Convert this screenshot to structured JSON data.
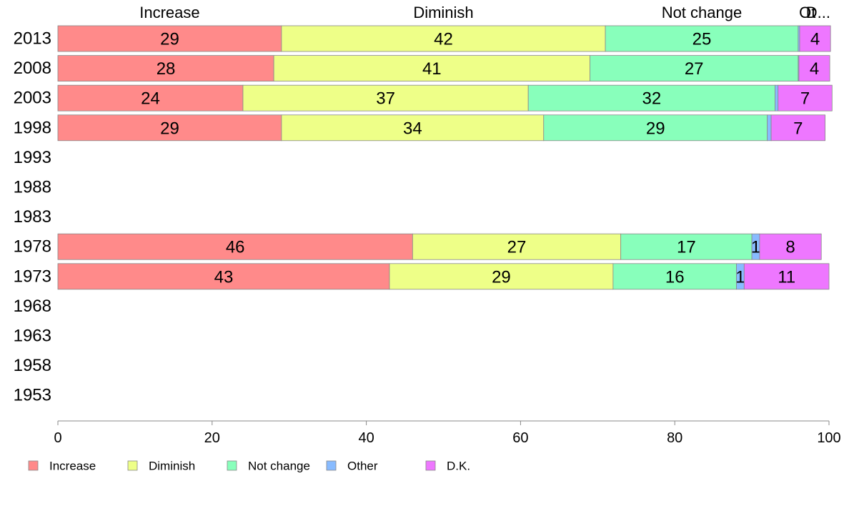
{
  "chart_data": {
    "type": "bar",
    "orientation": "horizontal",
    "stacked": true,
    "title": "",
    "xlabel": "",
    "ylabel": "",
    "xlim": [
      0,
      100
    ],
    "x_ticks": [
      0,
      20,
      40,
      60,
      80,
      100
    ],
    "categories": [
      "2013",
      "2008",
      "2003",
      "1998",
      "1993",
      "1988",
      "1983",
      "1978",
      "1973",
      "1968",
      "1963",
      "1958",
      "1953"
    ],
    "series": [
      {
        "name": "Increase",
        "color": "#ff8a8a",
        "values": [
          29,
          28,
          24,
          29,
          null,
          null,
          null,
          46,
          43,
          null,
          null,
          null,
          null
        ]
      },
      {
        "name": "Diminish",
        "color": "#eeff88",
        "values": [
          42,
          41,
          37,
          34,
          null,
          null,
          null,
          27,
          29,
          null,
          null,
          null,
          null
        ]
      },
      {
        "name": "Not change",
        "color": "#88ffbb",
        "values": [
          25,
          27,
          32,
          29,
          null,
          null,
          null,
          17,
          16,
          null,
          null,
          null,
          null
        ]
      },
      {
        "name": "Other",
        "color": "#88bbff",
        "values": [
          0.2,
          0.1,
          0.4,
          0.5,
          null,
          null,
          null,
          1,
          1,
          null,
          null,
          null,
          null
        ]
      },
      {
        "name": "D.K.",
        "color": "#ee77ff",
        "values": [
          4,
          4,
          7,
          7,
          null,
          null,
          null,
          8,
          11,
          null,
          null,
          null,
          null
        ]
      }
    ],
    "top_labels": [
      "Increase",
      "Diminish",
      "Not change",
      "Ot",
      "D..."
    ],
    "legend": {
      "position": "bottom-left",
      "entries": [
        "Increase",
        "Diminish",
        "Not change",
        "Other",
        "D.K."
      ]
    },
    "grid": false
  }
}
